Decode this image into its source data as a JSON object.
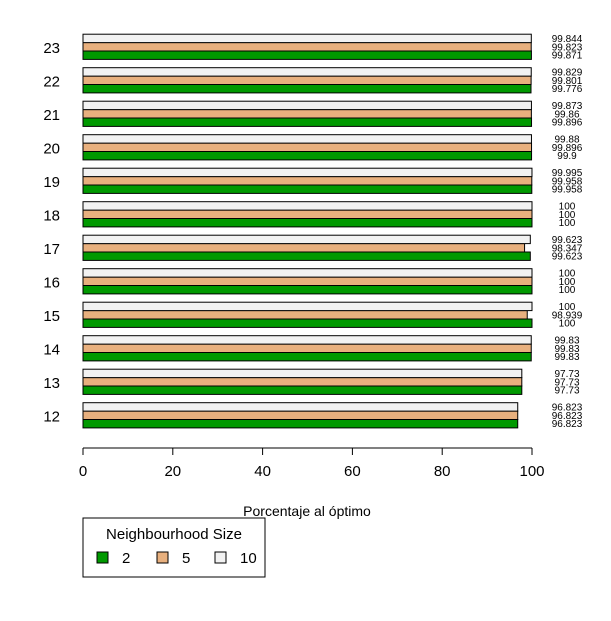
{
  "chart_data": {
    "type": "bar",
    "orientation": "horizontal",
    "categories": [
      "12",
      "13",
      "14",
      "15",
      "16",
      "17",
      "18",
      "19",
      "20",
      "21",
      "22",
      "23"
    ],
    "series": [
      {
        "name": "2",
        "color": "#009900",
        "values": [
          96.823,
          97.73,
          99.83,
          100,
          100,
          99.623,
          100,
          99.958,
          99.9,
          99.896,
          99.776,
          99.871
        ]
      },
      {
        "name": "5",
        "color": "#E8B07E",
        "values": [
          96.823,
          97.73,
          99.83,
          98.939,
          100,
          98.347,
          100,
          99.958,
          99.896,
          99.86,
          99.801,
          99.823
        ]
      },
      {
        "name": "10",
        "color": "#F2F2F2",
        "values": [
          96.823,
          97.73,
          99.83,
          100,
          100,
          99.623,
          100,
          99.995,
          99.88,
          99.873,
          99.829,
          99.844
        ]
      }
    ],
    "data_labels": [
      [
        "96.823",
        "96.823",
        "96.823"
      ],
      [
        "97.73",
        "97.73",
        "97.73"
      ],
      [
        "99.83",
        "99.83",
        "99.83"
      ],
      [
        "100",
        "98.939",
        "100"
      ],
      [
        "100",
        "100",
        "100"
      ],
      [
        "99.623",
        "98.347",
        "99.623"
      ],
      [
        "100",
        "100",
        "100"
      ],
      [
        "99.958",
        "99.958",
        "99.995"
      ],
      [
        "99.9",
        "99.896",
        "99.88"
      ],
      [
        "99.896",
        "99.86",
        "99.873"
      ],
      [
        "99.776",
        "99.801",
        "99.829"
      ],
      [
        "99.871",
        "99.823",
        "99.844"
      ]
    ],
    "xlabel": "Porcentaje al óptimo",
    "ylabel": "",
    "xlim": [
      0,
      100
    ],
    "xticks": [
      "0",
      "20",
      "40",
      "60",
      "80",
      "100"
    ],
    "legend": {
      "title": "Neighbourhood Size",
      "entries": [
        "2",
        "5",
        "10"
      ],
      "placement": "bottom-left"
    },
    "grid": false
  }
}
